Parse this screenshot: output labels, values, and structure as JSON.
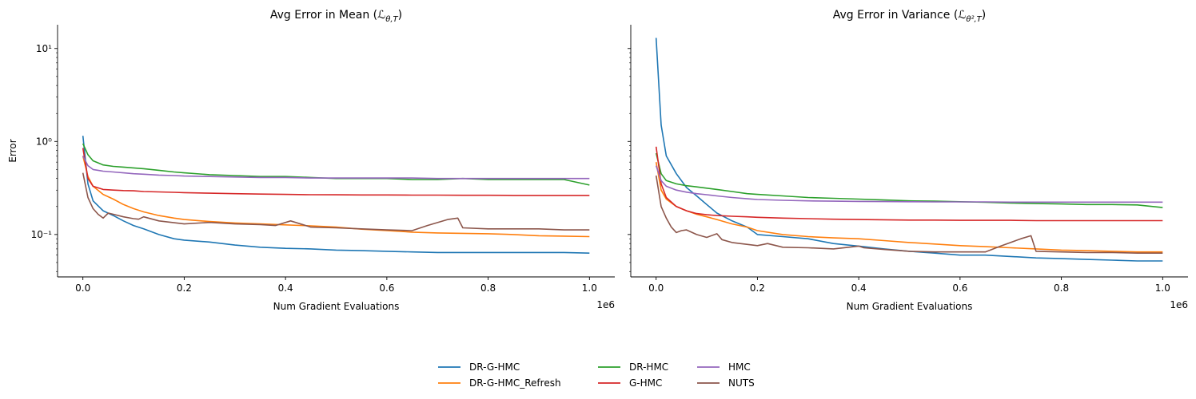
{
  "figure": {
    "legend": {
      "placement": "bottom-center",
      "ncol": 3,
      "entries": [
        "DR-G-HMC",
        "DR-G-HMC_Refresh",
        "DR-HMC",
        "G-HMC",
        "HMC",
        "NUTS"
      ]
    }
  },
  "chart_data": [
    {
      "type": "line",
      "title": "Avg Error in Mean (ℒθ,T)",
      "title_plain": "Avg Error in Mean (",
      "title_math": "ℒ",
      "title_sub": "θ,T",
      "title_close": ")",
      "xlabel": "Num Gradient Evaluations",
      "ylabel": "Error",
      "x_offset_label": "1e6",
      "yscale": "log",
      "xlim": [
        -0.05,
        1.05
      ],
      "ylim": [
        0.035,
        18
      ],
      "xticks": [
        0.0,
        0.2,
        0.4,
        0.6,
        0.8,
        1.0
      ],
      "xtick_labels": [
        "0.0",
        "0.2",
        "0.4",
        "0.6",
        "0.8",
        "1.0"
      ],
      "yticks": [
        0.1,
        1,
        10
      ],
      "ytick_labels": [
        "10⁻¹",
        "10⁰",
        "10¹"
      ],
      "grid": false,
      "series": [
        {
          "name": "DR-G-HMC",
          "color": "#1f77b4",
          "x": [
            0,
            0.01,
            0.02,
            0.04,
            0.06,
            0.08,
            0.1,
            0.12,
            0.15,
            0.18,
            0.2,
            0.25,
            0.3,
            0.35,
            0.4,
            0.45,
            0.5,
            0.55,
            0.6,
            0.65,
            0.7,
            0.75,
            0.8,
            0.85,
            0.9,
            0.95,
            1.0
          ],
          "y": [
            1.15,
            0.35,
            0.23,
            0.18,
            0.16,
            0.14,
            0.125,
            0.115,
            0.1,
            0.09,
            0.087,
            0.083,
            0.077,
            0.073,
            0.071,
            0.07,
            0.068,
            0.067,
            0.066,
            0.065,
            0.064,
            0.064,
            0.064,
            0.064,
            0.064,
            0.064,
            0.063
          ]
        },
        {
          "name": "DR-G-HMC_Refresh",
          "color": "#ff7f0e",
          "x": [
            0,
            0.01,
            0.02,
            0.04,
            0.06,
            0.08,
            0.1,
            0.12,
            0.15,
            0.18,
            0.2,
            0.25,
            0.3,
            0.35,
            0.4,
            0.45,
            0.5,
            0.55,
            0.6,
            0.65,
            0.7,
            0.75,
            0.8,
            0.85,
            0.9,
            0.95,
            1.0
          ],
          "y": [
            0.7,
            0.42,
            0.33,
            0.27,
            0.24,
            0.21,
            0.19,
            0.175,
            0.16,
            0.15,
            0.145,
            0.138,
            0.133,
            0.13,
            0.127,
            0.124,
            0.12,
            0.114,
            0.11,
            0.106,
            0.104,
            0.103,
            0.102,
            0.1,
            0.097,
            0.096,
            0.095
          ]
        },
        {
          "name": "DR-HMC",
          "color": "#2ca02c",
          "x": [
            0,
            0.01,
            0.02,
            0.04,
            0.06,
            0.08,
            0.1,
            0.12,
            0.15,
            0.18,
            0.2,
            0.25,
            0.3,
            0.35,
            0.4,
            0.45,
            0.5,
            0.55,
            0.6,
            0.65,
            0.7,
            0.75,
            0.8,
            0.85,
            0.9,
            0.95,
            1.0
          ],
          "y": [
            0.95,
            0.72,
            0.62,
            0.56,
            0.54,
            0.53,
            0.52,
            0.51,
            0.49,
            0.47,
            0.46,
            0.44,
            0.43,
            0.42,
            0.42,
            0.41,
            0.4,
            0.4,
            0.4,
            0.39,
            0.39,
            0.4,
            0.39,
            0.39,
            0.39,
            0.39,
            0.34
          ]
        },
        {
          "name": "G-HMC",
          "color": "#d62728",
          "x": [
            0,
            0.01,
            0.02,
            0.04,
            0.06,
            0.08,
            0.1,
            0.12,
            0.15,
            0.18,
            0.2,
            0.25,
            0.3,
            0.35,
            0.4,
            0.45,
            0.5,
            0.55,
            0.6,
            0.65,
            0.7,
            0.75,
            0.8,
            0.85,
            0.9,
            0.95,
            1.0
          ],
          "y": [
            0.85,
            0.4,
            0.33,
            0.305,
            0.3,
            0.297,
            0.295,
            0.29,
            0.287,
            0.284,
            0.282,
            0.278,
            0.275,
            0.272,
            0.27,
            0.268,
            0.267,
            0.266,
            0.266,
            0.265,
            0.265,
            0.264,
            0.264,
            0.263,
            0.263,
            0.263,
            0.263
          ]
        },
        {
          "name": "HMC",
          "color": "#9467bd",
          "x": [
            0,
            0.01,
            0.02,
            0.04,
            0.06,
            0.08,
            0.1,
            0.12,
            0.15,
            0.18,
            0.2,
            0.25,
            0.3,
            0.35,
            0.4,
            0.45,
            0.5,
            0.55,
            0.6,
            0.65,
            0.7,
            0.75,
            0.8,
            0.85,
            0.9,
            0.95,
            1.0
          ],
          "y": [
            0.7,
            0.55,
            0.5,
            0.48,
            0.47,
            0.46,
            0.45,
            0.445,
            0.435,
            0.43,
            0.425,
            0.42,
            0.415,
            0.41,
            0.41,
            0.405,
            0.405,
            0.405,
            0.405,
            0.405,
            0.4,
            0.4,
            0.4,
            0.4,
            0.4,
            0.4,
            0.4
          ]
        },
        {
          "name": "NUTS",
          "color": "#8c564b",
          "x": [
            0,
            0.01,
            0.02,
            0.03,
            0.04,
            0.05,
            0.06,
            0.08,
            0.1,
            0.11,
            0.12,
            0.15,
            0.2,
            0.25,
            0.3,
            0.35,
            0.38,
            0.41,
            0.45,
            0.5,
            0.55,
            0.6,
            0.65,
            0.68,
            0.72,
            0.74,
            0.75,
            0.8,
            0.85,
            0.9,
            0.95,
            1.0
          ],
          "y": [
            0.46,
            0.25,
            0.19,
            0.165,
            0.15,
            0.17,
            0.165,
            0.155,
            0.148,
            0.146,
            0.155,
            0.14,
            0.13,
            0.135,
            0.13,
            0.128,
            0.125,
            0.14,
            0.12,
            0.118,
            0.115,
            0.112,
            0.11,
            0.125,
            0.145,
            0.15,
            0.118,
            0.115,
            0.115,
            0.115,
            0.112,
            0.112
          ]
        }
      ]
    },
    {
      "type": "line",
      "title": "Avg Error in Variance (ℒθ²,T)",
      "title_plain": "Avg Error in Variance (",
      "title_math": "ℒ",
      "title_sub": "θ²,T",
      "title_close": ")",
      "xlabel": "Num Gradient Evaluations",
      "ylabel": "",
      "x_offset_label": "1e6",
      "yscale": "log",
      "xlim": [
        -0.05,
        1.05
      ],
      "ylim": [
        0.035,
        18
      ],
      "xticks": [
        0.0,
        0.2,
        0.4,
        0.6,
        0.8,
        1.0
      ],
      "xtick_labels": [
        "0.0",
        "0.2",
        "0.4",
        "0.6",
        "0.8",
        "1.0"
      ],
      "yticks": [
        0.1,
        1,
        10
      ],
      "ytick_labels": [
        "",
        "",
        ""
      ],
      "grid": false,
      "series": [
        {
          "name": "DR-G-HMC",
          "color": "#1f77b4",
          "x": [
            0,
            0.01,
            0.02,
            0.04,
            0.06,
            0.08,
            0.1,
            0.12,
            0.15,
            0.18,
            0.2,
            0.25,
            0.3,
            0.35,
            0.4,
            0.45,
            0.5,
            0.55,
            0.6,
            0.65,
            0.7,
            0.75,
            0.8,
            0.85,
            0.9,
            0.95,
            1.0
          ],
          "y": [
            13,
            1.5,
            0.7,
            0.45,
            0.32,
            0.26,
            0.21,
            0.17,
            0.14,
            0.12,
            0.1,
            0.095,
            0.09,
            0.08,
            0.075,
            0.07,
            0.066,
            0.063,
            0.06,
            0.06,
            0.058,
            0.056,
            0.055,
            0.054,
            0.053,
            0.052,
            0.052
          ]
        },
        {
          "name": "DR-G-HMC_Refresh",
          "color": "#ff7f0e",
          "x": [
            0,
            0.01,
            0.02,
            0.04,
            0.06,
            0.08,
            0.1,
            0.12,
            0.15,
            0.18,
            0.2,
            0.25,
            0.3,
            0.35,
            0.4,
            0.45,
            0.5,
            0.55,
            0.6,
            0.65,
            0.7,
            0.75,
            0.8,
            0.85,
            0.9,
            0.95,
            1.0
          ],
          "y": [
            0.6,
            0.3,
            0.24,
            0.2,
            0.18,
            0.165,
            0.155,
            0.145,
            0.13,
            0.12,
            0.11,
            0.1,
            0.095,
            0.092,
            0.09,
            0.086,
            0.082,
            0.079,
            0.076,
            0.074,
            0.072,
            0.07,
            0.068,
            0.067,
            0.066,
            0.065,
            0.065
          ]
        },
        {
          "name": "DR-HMC",
          "color": "#2ca02c",
          "x": [
            0,
            0.01,
            0.02,
            0.04,
            0.06,
            0.08,
            0.1,
            0.12,
            0.15,
            0.18,
            0.2,
            0.25,
            0.3,
            0.35,
            0.4,
            0.45,
            0.5,
            0.55,
            0.6,
            0.65,
            0.7,
            0.75,
            0.8,
            0.85,
            0.9,
            0.95,
            1.0
          ],
          "y": [
            0.75,
            0.45,
            0.38,
            0.35,
            0.335,
            0.325,
            0.315,
            0.305,
            0.29,
            0.275,
            0.27,
            0.26,
            0.25,
            0.245,
            0.24,
            0.235,
            0.23,
            0.228,
            0.225,
            0.222,
            0.218,
            0.215,
            0.213,
            0.21,
            0.21,
            0.208,
            0.195
          ]
        },
        {
          "name": "G-HMC",
          "color": "#d62728",
          "x": [
            0,
            0.01,
            0.02,
            0.04,
            0.06,
            0.08,
            0.1,
            0.12,
            0.15,
            0.18,
            0.2,
            0.25,
            0.3,
            0.35,
            0.4,
            0.45,
            0.5,
            0.55,
            0.6,
            0.65,
            0.7,
            0.75,
            0.8,
            0.85,
            0.9,
            0.95,
            1.0
          ],
          "y": [
            0.88,
            0.35,
            0.25,
            0.2,
            0.18,
            0.168,
            0.163,
            0.16,
            0.157,
            0.155,
            0.153,
            0.15,
            0.148,
            0.146,
            0.145,
            0.144,
            0.143,
            0.143,
            0.142,
            0.142,
            0.142,
            0.141,
            0.141,
            0.141,
            0.141,
            0.141,
            0.141
          ]
        },
        {
          "name": "HMC",
          "color": "#9467bd",
          "x": [
            0,
            0.01,
            0.02,
            0.04,
            0.06,
            0.08,
            0.1,
            0.12,
            0.15,
            0.18,
            0.2,
            0.25,
            0.3,
            0.35,
            0.4,
            0.45,
            0.5,
            0.55,
            0.6,
            0.65,
            0.7,
            0.75,
            0.8,
            0.85,
            0.9,
            0.95,
            1.0
          ],
          "y": [
            0.55,
            0.38,
            0.33,
            0.3,
            0.285,
            0.275,
            0.268,
            0.26,
            0.25,
            0.242,
            0.238,
            0.233,
            0.23,
            0.228,
            0.227,
            0.226,
            0.225,
            0.224,
            0.224,
            0.224,
            0.223,
            0.223,
            0.223,
            0.223,
            0.223,
            0.223,
            0.223
          ]
        },
        {
          "name": "NUTS",
          "color": "#8c564b",
          "x": [
            0,
            0.01,
            0.02,
            0.03,
            0.04,
            0.05,
            0.06,
            0.08,
            0.1,
            0.12,
            0.13,
            0.15,
            0.2,
            0.22,
            0.25,
            0.3,
            0.35,
            0.4,
            0.41,
            0.45,
            0.5,
            0.55,
            0.6,
            0.65,
            0.68,
            0.72,
            0.74,
            0.75,
            0.8,
            0.85,
            0.9,
            0.95,
            1.0
          ],
          "y": [
            0.43,
            0.2,
            0.15,
            0.12,
            0.105,
            0.11,
            0.112,
            0.1,
            0.093,
            0.102,
            0.088,
            0.082,
            0.076,
            0.08,
            0.073,
            0.072,
            0.07,
            0.075,
            0.072,
            0.069,
            0.066,
            0.065,
            0.065,
            0.065,
            0.075,
            0.09,
            0.097,
            0.066,
            0.065,
            0.064,
            0.064,
            0.063,
            0.063
          ]
        }
      ]
    }
  ]
}
